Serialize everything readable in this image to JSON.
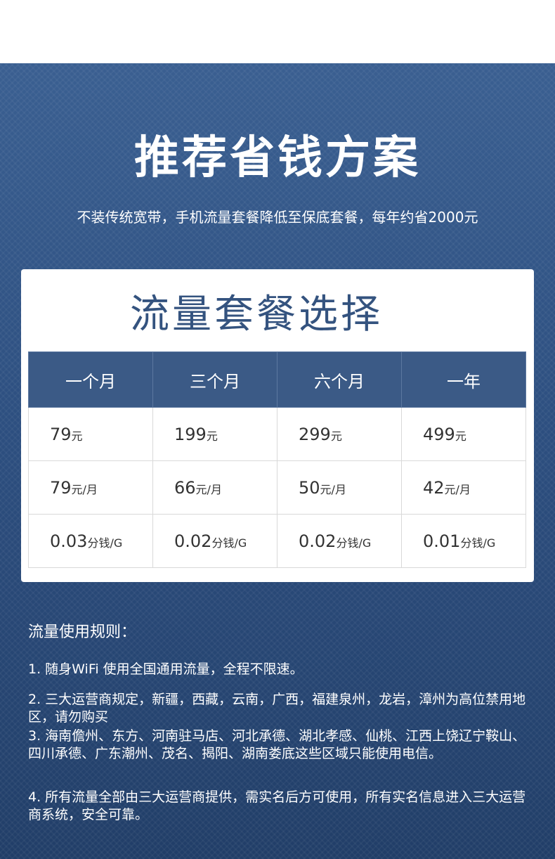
{
  "header": {
    "title": "推荐省钱方案",
    "subtitle": "不装传统宽带，手机流量套餐降低至保底套餐，每年约省2000元"
  },
  "plan_table": {
    "title": "流量套餐选择",
    "columns": [
      "一个月",
      "三个月",
      "六个月",
      "一年"
    ],
    "rows": [
      [
        {
          "value": "79",
          "unit": "元"
        },
        {
          "value": "199",
          "unit": "元"
        },
        {
          "value": "299",
          "unit": "元"
        },
        {
          "value": "499",
          "unit": "元"
        }
      ],
      [
        {
          "value": "79",
          "unit": "元/月"
        },
        {
          "value": "66",
          "unit": "元/月"
        },
        {
          "value": "50",
          "unit": "元/月"
        },
        {
          "value": "42",
          "unit": "元/月"
        }
      ],
      [
        {
          "value": "0.03",
          "unit": "分钱/G"
        },
        {
          "value": "0.02",
          "unit": "分钱/G"
        },
        {
          "value": "0.02",
          "unit": "分钱/G"
        },
        {
          "value": "0.01",
          "unit": "分钱/G"
        }
      ]
    ]
  },
  "rules": {
    "title": "流量使用规则：",
    "items": [
      "1. 随身WiFi 使用全国通用流量，全程不限速。",
      "2. 三大运营商规定，新疆，西藏，云南，广西，福建泉州，龙岩，漳州为高位禁用地区，请勿购买",
      "3. 海南儋州、东方、河南驻马店、河北承德、湖北孝感、仙桃、江西上饶辽宁鞍山、四川承德、广东潮州、茂名、揭阳、湖南娄底这些区域只能使用电信。",
      "4. 所有流量全部由三大运营商提供，需实名后方可使用，所有实名信息进入三大运营商系统，安全可靠。"
    ]
  },
  "colors": {
    "background_blue": "#2d4f80",
    "header_cell_blue": "#3b5a86",
    "card_title_blue": "#34537f"
  }
}
